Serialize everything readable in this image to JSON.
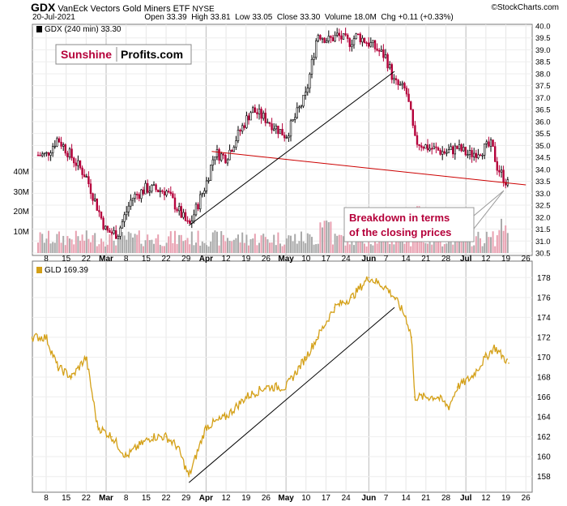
{
  "header": {
    "symbol": "GDX",
    "name": "VanEck Vectors Gold Miners ETF",
    "exchange": "NYSE",
    "date": "20-Jul-2021",
    "open_label": "Open",
    "open": "33.39",
    "high_label": "High",
    "high": "33.81",
    "low_label": "Low",
    "low": "33.05",
    "close_label": "Close",
    "close": "33.30",
    "volume_label": "Volume",
    "volume": "18.0M",
    "chg_label": "Chg",
    "chg": "+0.11 (+0.33%)",
    "watermark": "©StockCharts.com"
  },
  "logo": {
    "part1": "Sunshine",
    "part2": "Profits.com"
  },
  "annotation": {
    "line1": "Breakdown in terms",
    "line2": "of the closing prices"
  },
  "colors": {
    "gdx_up": "#000000",
    "gdx_down": "#b5003a",
    "gld": "#d4a017",
    "trend_red": "#cc0000",
    "trend_black": "#000000",
    "annotation_text": "#b5003a",
    "vol_up": "#aaaaaa",
    "vol_down": "#e8a0b0"
  },
  "chart_data": [
    {
      "type": "candlestick",
      "legend": "GDX (240 min) 33.30",
      "y_ticks": [
        "40.0",
        "39.5",
        "39.0",
        "38.5",
        "38.0",
        "37.5",
        "37.0",
        "36.5",
        "36.0",
        "35.5",
        "35.0",
        "34.5",
        "34.0",
        "33.5",
        "33.0",
        "32.5",
        "32.0",
        "31.5",
        "31.0",
        "30.5"
      ],
      "ylim": [
        30.5,
        40.0
      ],
      "volume_ticks": [
        "40M",
        "30M",
        "20M",
        "10M"
      ],
      "x_ticks": [
        "8",
        "15",
        "22",
        "Mar",
        "8",
        "15",
        "22",
        "29",
        "Apr",
        "12",
        "19",
        "26",
        "May",
        "10",
        "17",
        "24",
        "Jun",
        "7",
        "14",
        "21",
        "28",
        "Jul",
        "12",
        "19",
        "26"
      ],
      "series": [
        {
          "name": "GDX",
          "x_end": [
            "Feb 8",
            "Feb 12",
            "Feb 17",
            "Feb 22",
            "Mar 1",
            "Mar 5",
            "Mar 10",
            "Mar 15",
            "Mar 22",
            "Mar 30",
            "Apr 5",
            "Apr 8",
            "Apr 12",
            "Apr 16",
            "Apr 21",
            "Apr 26",
            "May 3",
            "May 10",
            "May 14",
            "May 18",
            "May 21",
            "May 25",
            "May 28",
            "Jun 2",
            "Jun 7",
            "Jun 10",
            "Jun 14",
            "Jun 16",
            "Jun 17",
            "Jun 22",
            "Jun 28",
            "Jul 2",
            "Jul 6",
            "Jul 12",
            "Jul 14",
            "Jul 16",
            "Jul 20"
          ],
          "values": [
            34.6,
            35.3,
            34.5,
            33.7,
            31.4,
            31.3,
            32.8,
            33.2,
            33.1,
            31.6,
            33.4,
            34.7,
            34.5,
            35.4,
            36.5,
            36.1,
            35.4,
            37.1,
            39.7,
            39.4,
            39.6,
            39.3,
            39.6,
            39.2,
            38.7,
            37.6,
            37.3,
            36.1,
            35.2,
            34.9,
            34.7,
            34.9,
            34.6,
            34.9,
            35.0,
            34.1,
            33.3
          ]
        }
      ],
      "trendlines": [
        {
          "name": "red-support",
          "from": [
            "Apr 7",
            34.75
          ],
          "to": [
            "Jul 26",
            33.35
          ]
        },
        {
          "name": "black-rising",
          "from": [
            "Mar 30",
            31.65
          ],
          "to": [
            "Jun 10",
            38.1
          ]
        }
      ]
    },
    {
      "type": "line",
      "legend": "GLD 169.39",
      "y_ticks": [
        "178",
        "176",
        "174",
        "172",
        "170",
        "168",
        "166",
        "164",
        "162",
        "160",
        "158"
      ],
      "ylim": [
        157,
        179
      ],
      "x_ticks": [
        "8",
        "15",
        "22",
        "Mar",
        "8",
        "15",
        "22",
        "29",
        "Apr",
        "12",
        "19",
        "26",
        "May",
        "10",
        "17",
        "24",
        "Jun",
        "7",
        "14",
        "21",
        "28",
        "Jul",
        "12",
        "19",
        "26"
      ],
      "series": [
        {
          "name": "GLD",
          "x": [
            "Feb 3",
            "Feb 8",
            "Feb 12",
            "Feb 17",
            "Feb 22",
            "Feb 26",
            "Mar 3",
            "Mar 8",
            "Mar 12",
            "Mar 17",
            "Mar 22",
            "Mar 26",
            "Mar 30",
            "Apr 5",
            "Apr 12",
            "Apr 19",
            "Apr 26",
            "May 3",
            "May 10",
            "May 14",
            "May 20",
            "May 26",
            "Jun 1",
            "Jun 7",
            "Jun 10",
            "Jun 14",
            "Jun 16",
            "Jun 17",
            "Jun 21",
            "Jun 25",
            "Jun 29",
            "Jul 2",
            "Jul 7",
            "Jul 12",
            "Jul 15",
            "Jul 20"
          ],
          "values": [
            172,
            172,
            169,
            168,
            170,
            163,
            162,
            160,
            161,
            162,
            162,
            161,
            158,
            163,
            164,
            166,
            167,
            167,
            170,
            172,
            175,
            176,
            178,
            177,
            176,
            174,
            172,
            166,
            166,
            166,
            165,
            167,
            168,
            170,
            171,
            169.4
          ]
        }
      ],
      "trendlines": [
        {
          "name": "black-rising",
          "from": [
            "Mar 30",
            157.4
          ],
          "to": [
            "Jun 10",
            175
          ]
        }
      ]
    }
  ]
}
